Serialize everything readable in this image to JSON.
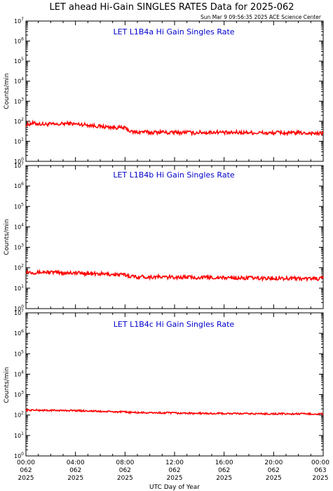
{
  "header": {
    "title": "LET ahead Hi-Gain SINGLES RATES Data for 2025-062",
    "timestamp": "Sun Mar  9 09:56:35 2025 ACE Science Center"
  },
  "xaxis": {
    "label": "UTC Day of Year",
    "ticks": [
      {
        "time": "00:00",
        "day": "062",
        "year": "2025"
      },
      {
        "time": "04:00",
        "day": "062",
        "year": "2025"
      },
      {
        "time": "08:00",
        "day": "062",
        "year": "2025"
      },
      {
        "time": "12:00",
        "day": "062",
        "year": "2025"
      },
      {
        "time": "16:00",
        "day": "062",
        "year": "2025"
      },
      {
        "time": "20:00",
        "day": "062",
        "year": "2025"
      },
      {
        "time": "00:00",
        "day": "063",
        "year": "2025"
      }
    ]
  },
  "colors": {
    "series": "#ff0000",
    "panel_title": "#0000cc",
    "axes": "#000000"
  },
  "chart_data": [
    {
      "type": "line",
      "title": "LET L1B4a Hi Gain Singles Rate",
      "ylabel": "Counts/min",
      "yscale": "log",
      "ylim": [
        1,
        10000000
      ],
      "xlim_hours": [
        0,
        24
      ],
      "grid": false,
      "series": [
        {
          "x_hours": [
            0,
            0.5,
            1,
            1.5,
            2,
            2.5,
            3,
            3.5,
            4,
            4.5,
            5,
            5.5,
            6,
            6.5,
            7,
            7.5,
            8,
            8.5,
            9,
            9.5,
            10,
            10.5,
            11,
            11.5,
            12,
            12.5,
            13,
            13.5,
            14,
            14.5,
            15,
            15.5,
            16,
            16.5,
            17,
            17.5,
            18,
            18.5,
            19,
            19.5,
            20,
            20.5,
            21,
            21.5,
            22,
            22.5,
            23,
            23.5,
            24
          ],
          "values": [
            65,
            80,
            75,
            70,
            72,
            68,
            75,
            78,
            72,
            70,
            65,
            60,
            55,
            52,
            50,
            48,
            45,
            30,
            28,
            30,
            27,
            28,
            30,
            26,
            28,
            27,
            29,
            26,
            28,
            27,
            28,
            29,
            27,
            26,
            28,
            27,
            28,
            26,
            27,
            25,
            26,
            28,
            25,
            26,
            27,
            25,
            26,
            24,
            25
          ]
        }
      ]
    },
    {
      "type": "line",
      "title": "LET L1B4b Hi Gain Singles Rate",
      "ylabel": "Counts/min",
      "yscale": "log",
      "ylim": [
        1,
        10000000
      ],
      "xlim_hours": [
        0,
        24
      ],
      "grid": false,
      "series": [
        {
          "x_hours": [
            0,
            0.5,
            1,
            1.5,
            2,
            2.5,
            3,
            3.5,
            4,
            4.5,
            5,
            5.5,
            6,
            6.5,
            7,
            7.5,
            8,
            8.5,
            9,
            9.5,
            10,
            10.5,
            11,
            11.5,
            12,
            12.5,
            13,
            13.5,
            14,
            14.5,
            15,
            15.5,
            16,
            16.5,
            17,
            17.5,
            18,
            18.5,
            19,
            19.5,
            20,
            20.5,
            21,
            21.5,
            22,
            22.5,
            23,
            23.5,
            24
          ],
          "values": [
            65,
            60,
            58,
            62,
            60,
            58,
            55,
            58,
            56,
            55,
            52,
            50,
            50,
            48,
            47,
            46,
            45,
            38,
            36,
            37,
            35,
            36,
            35,
            34,
            35,
            34,
            35,
            33,
            34,
            33,
            34,
            33,
            32,
            33,
            32,
            31,
            32,
            31,
            30,
            31,
            30,
            32,
            30,
            31,
            30,
            29,
            30,
            29,
            30
          ]
        }
      ]
    },
    {
      "type": "line",
      "title": "LET L1B4c Hi Gain Singles Rate",
      "ylabel": "Counts/min",
      "yscale": "log",
      "ylim": [
        1,
        10000000
      ],
      "xlim_hours": [
        0,
        24
      ],
      "grid": false,
      "series": [
        {
          "x_hours": [
            0,
            0.5,
            1,
            1.5,
            2,
            2.5,
            3,
            3.5,
            4,
            4.5,
            5,
            5.5,
            6,
            6.5,
            7,
            7.5,
            8,
            8.5,
            9,
            9.5,
            10,
            10.5,
            11,
            11.5,
            12,
            12.5,
            13,
            13.5,
            14,
            14.5,
            15,
            15.5,
            16,
            16.5,
            17,
            17.5,
            18,
            18.5,
            19,
            19.5,
            20,
            20.5,
            21,
            21.5,
            22,
            22.5,
            23,
            23.5,
            24
          ],
          "values": [
            170,
            175,
            172,
            170,
            168,
            170,
            165,
            168,
            165,
            162,
            160,
            155,
            150,
            148,
            145,
            142,
            140,
            135,
            132,
            130,
            128,
            130,
            125,
            128,
            125,
            122,
            125,
            120,
            122,
            120,
            118,
            120,
            118,
            117,
            118,
            116,
            117,
            115,
            116,
            115,
            114,
            116,
            114,
            113,
            115,
            112,
            114,
            112,
            113
          ]
        }
      ]
    }
  ]
}
